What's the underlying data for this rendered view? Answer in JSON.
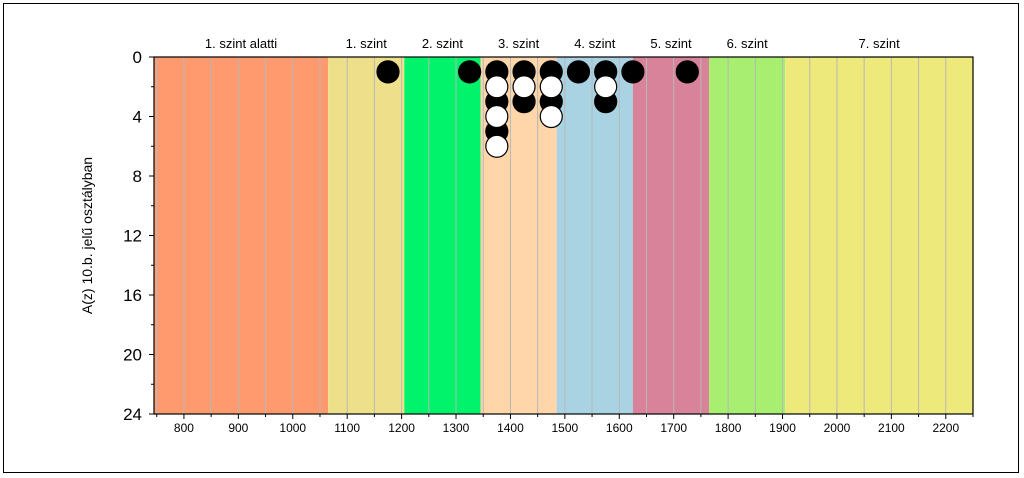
{
  "chart_data": {
    "type": "scatter",
    "title": "",
    "xlabel": "",
    "ylabel": "A(z) 10.b. jelű osztályban",
    "xlim": [
      745,
      2250
    ],
    "ylim": [
      0,
      24
    ],
    "y_inverted": true,
    "grid": true,
    "x_ticks": [
      "800",
      "900",
      "1000",
      "1100",
      "1200",
      "1300",
      "1400",
      "1500",
      "1600",
      "1700",
      "1800",
      "1900",
      "2000",
      "2100",
      "2200"
    ],
    "y_ticks": [
      "0",
      "4",
      "8",
      "12",
      "16",
      "20",
      "24"
    ],
    "bands": [
      {
        "label": "1. szint alatti",
        "from": 745,
        "to": 1065,
        "color": "#FF9A6E"
      },
      {
        "label": "1. szint",
        "from": 1065,
        "to": 1205,
        "color": "#EEE08A"
      },
      {
        "label": "2. szint",
        "from": 1205,
        "to": 1345,
        "color": "#00F36A"
      },
      {
        "label": "3. szint",
        "from": 1345,
        "to": 1485,
        "color": "#FFD5AA"
      },
      {
        "label": "4. szint",
        "from": 1485,
        "to": 1625,
        "color": "#A9D3E3"
      },
      {
        "label": "5. szint",
        "from": 1625,
        "to": 1765,
        "color": "#D9839A"
      },
      {
        "label": "6. szint",
        "from": 1765,
        "to": 1905,
        "color": "#A8EE70"
      },
      {
        "label": "7. szint",
        "from": 1905,
        "to": 2250,
        "color": "#EDEA7B"
      }
    ],
    "series": [
      {
        "color": "#000000",
        "points": [
          {
            "x": 1175,
            "y": 1
          },
          {
            "x": 1325,
            "y": 1
          },
          {
            "x": 1375,
            "y": 1
          },
          {
            "x": 1375,
            "y": 3
          },
          {
            "x": 1375,
            "y": 5
          },
          {
            "x": 1425,
            "y": 1
          },
          {
            "x": 1425,
            "y": 3
          },
          {
            "x": 1475,
            "y": 1
          },
          {
            "x": 1475,
            "y": 3
          },
          {
            "x": 1525,
            "y": 1
          },
          {
            "x": 1575,
            "y": 1
          },
          {
            "x": 1575,
            "y": 3
          },
          {
            "x": 1625,
            "y": 1
          },
          {
            "x": 1725,
            "y": 1
          }
        ]
      },
      {
        "color": "#ffffff",
        "points": [
          {
            "x": 1375,
            "y": 2
          },
          {
            "x": 1375,
            "y": 4
          },
          {
            "x": 1375,
            "y": 6
          },
          {
            "x": 1425,
            "y": 2
          },
          {
            "x": 1475,
            "y": 2
          },
          {
            "x": 1475,
            "y": 4
          },
          {
            "x": 1575,
            "y": 2
          }
        ]
      }
    ]
  }
}
